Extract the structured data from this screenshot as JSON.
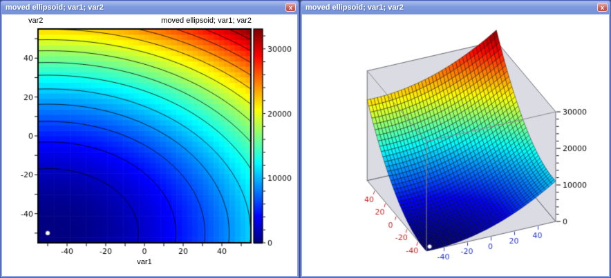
{
  "window_chrome": {
    "close_glyph": "x",
    "colors": {
      "titlebar_top": "#A9BEEC",
      "titlebar_main": "#7E99DD",
      "window_border": "#8CA4E0",
      "window_border_dark": "#4A5CB8",
      "close_button_red": "#C75F58"
    }
  },
  "windows": [
    {
      "title": "moved ellipsoid; var1; var2"
    },
    {
      "title": "moved ellipsoid; var1; var2"
    }
  ],
  "chart_data": [
    {
      "type": "heatmap",
      "subtype": "filled-contour-2d",
      "title": "moved ellipsoid; var1; var2",
      "xlabel": "var1",
      "ylabel": "var2",
      "x_range": [
        -55,
        55
      ],
      "y_range": [
        -55,
        55
      ],
      "x_ticks": [
        -40,
        -20,
        0,
        20,
        40
      ],
      "y_ticks": [
        -40,
        -20,
        0,
        20,
        40
      ],
      "minor_tick_step": 10,
      "grid_cells": 40,
      "colormap": "jet",
      "z_function": "z = (var1+50)^2 + 2*(var2+50)^2",
      "z_function_params": {
        "x_center": -50,
        "y_center": -50,
        "x_coeff": 1,
        "y_coeff": 2
      },
      "z_min": 0,
      "z_max": 33075,
      "minimum_at": [
        -50,
        -50
      ],
      "contour_levels": [
        2200,
        4400,
        6600,
        8800,
        11000,
        13200,
        15400,
        17600,
        19800,
        22000,
        24200,
        26400,
        28600,
        30800
      ],
      "colorbar_ticks": [
        0,
        10000,
        20000,
        30000
      ],
      "colorbar_minor_step": 2000,
      "marker": {
        "x": -50,
        "y": -50,
        "shape": "dot",
        "color": "#FFFFFF"
      }
    },
    {
      "type": "heatmap",
      "subtype": "surface-3d",
      "title": "moved ellipsoid; var1; var2",
      "x_range": [
        -55,
        55
      ],
      "y_range": [
        -55,
        55
      ],
      "x_ticks": [
        -40,
        -20,
        0,
        20,
        40
      ],
      "y_ticks_top_to_bottom": [
        40,
        20,
        0,
        -20,
        -40
      ],
      "z_ticks": [
        0,
        10000,
        20000,
        30000
      ],
      "z_minor_step": 2000,
      "box_z_max": 30000,
      "mesh_cells": 38,
      "colormap": "jet",
      "z_function": "z = (var1+50)^2 + 2*(var2+50)^2",
      "z_function_params": {
        "x_center": -50,
        "y_center": -50,
        "x_coeff": 1,
        "y_coeff": 2
      },
      "z_min": 0,
      "z_max": 33075,
      "minimum_at": [
        -50,
        -50
      ],
      "marker": {
        "x": -50,
        "y": -50,
        "shape": "dot",
        "color": "#FFFFFF"
      },
      "axis_label_colors": {
        "var2_left": "#CC2222",
        "var1_right": "#2233CC",
        "z_right": "#000000"
      },
      "wall_color": "#DBDBE3"
    }
  ]
}
